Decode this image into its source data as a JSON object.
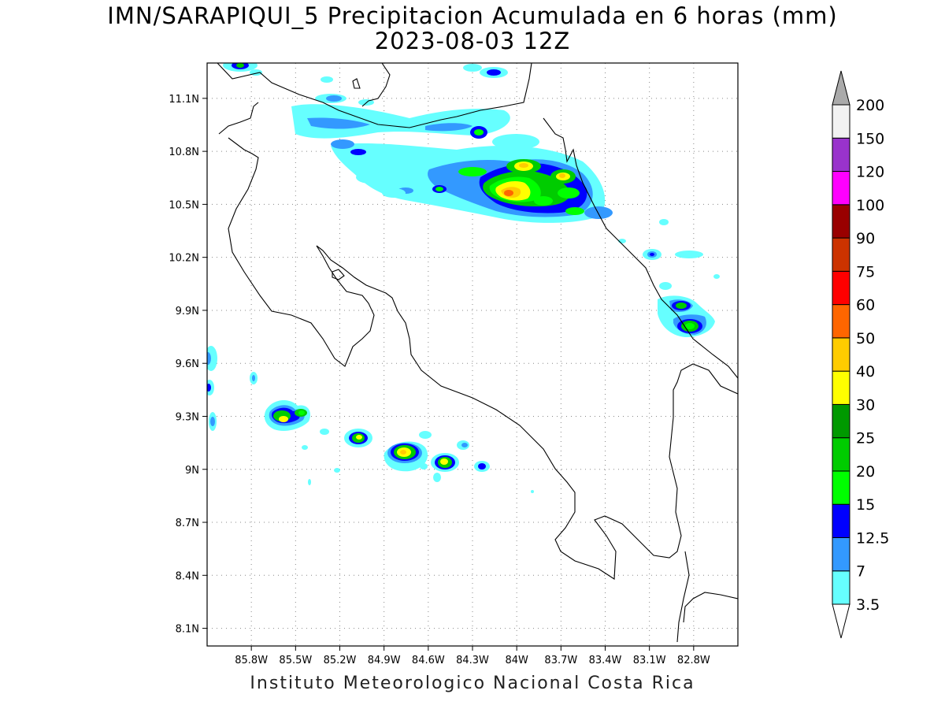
{
  "title": {
    "line1": "IMN/SARAPIQUI_5 Precipitacion Acumulada en 6 horas (mm)",
    "line2": "2023-08-03 12Z"
  },
  "credit": "Instituto Meteorologico Nacional Costa Rica",
  "map": {
    "lon_range": [
      -86.1,
      -82.5
    ],
    "lat_range": [
      8.0,
      11.3
    ],
    "lon_ticks": [
      {
        "value": -85.8,
        "label": "85.8W"
      },
      {
        "value": -85.5,
        "label": "85.5W"
      },
      {
        "value": -85.2,
        "label": "85.2W"
      },
      {
        "value": -84.9,
        "label": "84.9W"
      },
      {
        "value": -84.6,
        "label": "84.6W"
      },
      {
        "value": -84.3,
        "label": "84.3W"
      },
      {
        "value": -84.0,
        "label": "84W"
      },
      {
        "value": -83.7,
        "label": "83.7W"
      },
      {
        "value": -83.4,
        "label": "83.4W"
      },
      {
        "value": -83.1,
        "label": "83.1W"
      },
      {
        "value": -82.8,
        "label": "82.8W"
      }
    ],
    "lat_ticks": [
      {
        "value": 11.1,
        "label": "11.1N"
      },
      {
        "value": 10.8,
        "label": "10.8N"
      },
      {
        "value": 10.5,
        "label": "10.5N"
      },
      {
        "value": 10.2,
        "label": "10.2N"
      },
      {
        "value": 9.9,
        "label": "9.9N"
      },
      {
        "value": 9.6,
        "label": "9.6N"
      },
      {
        "value": 9.3,
        "label": "9.3N"
      },
      {
        "value": 9.0,
        "label": "9N"
      },
      {
        "value": 8.7,
        "label": "8.7N"
      },
      {
        "value": 8.4,
        "label": "8.4N"
      },
      {
        "value": 8.1,
        "label": "8.1N"
      }
    ],
    "grid": "dotted"
  },
  "colorbar": {
    "levels": [
      "3.5",
      "7",
      "12.5",
      "15",
      "20",
      "25",
      "30",
      "40",
      "50",
      "60",
      "75",
      "90",
      "100",
      "120",
      "150",
      "200"
    ],
    "colors": [
      "#66ffff",
      "#3399ff",
      "#0000ff",
      "#00ff00",
      "#00cc00",
      "#009900",
      "#ffff00",
      "#ffcc00",
      "#ff6600",
      "#ff0000",
      "#cc3300",
      "#990000",
      "#ff00ff",
      "#9933cc",
      "#f2f2f2",
      "#aaaaaa"
    ]
  },
  "precip_cells": [
    {
      "lon": -84.35,
      "lat": 10.88,
      "max": 12.5
    },
    {
      "lon": -84.15,
      "lat": 10.92,
      "max": 15
    },
    {
      "lon": -84.0,
      "lat": 10.55,
      "max": 50
    },
    {
      "lon": -83.9,
      "lat": 10.72,
      "max": 40
    },
    {
      "lon": -83.72,
      "lat": 10.65,
      "max": 40
    },
    {
      "lon": -83.65,
      "lat": 10.57,
      "max": 20
    },
    {
      "lon": -84.55,
      "lat": 10.58,
      "max": 15
    },
    {
      "lon": -84.9,
      "lat": 10.78,
      "max": 12.5
    },
    {
      "lon": -83.85,
      "lat": 10.5,
      "max": 20
    },
    {
      "lon": -82.8,
      "lat": 9.8,
      "max": 30
    },
    {
      "lon": -82.88,
      "lat": 9.92,
      "max": 20
    },
    {
      "lon": -83.07,
      "lat": 10.21,
      "max": 12.5
    },
    {
      "lon": -85.5,
      "lat": 9.3,
      "max": 30
    },
    {
      "lon": -85.35,
      "lat": 9.32,
      "max": 20
    },
    {
      "lon": -85.05,
      "lat": 9.18,
      "max": 30
    },
    {
      "lon": -84.7,
      "lat": 9.09,
      "max": 40
    },
    {
      "lon": -84.43,
      "lat": 9.05,
      "max": 30
    },
    {
      "lon": -84.2,
      "lat": 9.01,
      "max": 12.5
    },
    {
      "lon": -86.1,
      "lat": 9.63,
      "max": 12.5
    },
    {
      "lon": -86.1,
      "lat": 9.47,
      "max": 12.5
    },
    {
      "lon": -85.8,
      "lat": 11.27,
      "max": 15
    },
    {
      "lon": -84.15,
      "lat": 11.24,
      "max": 12.5
    }
  ]
}
